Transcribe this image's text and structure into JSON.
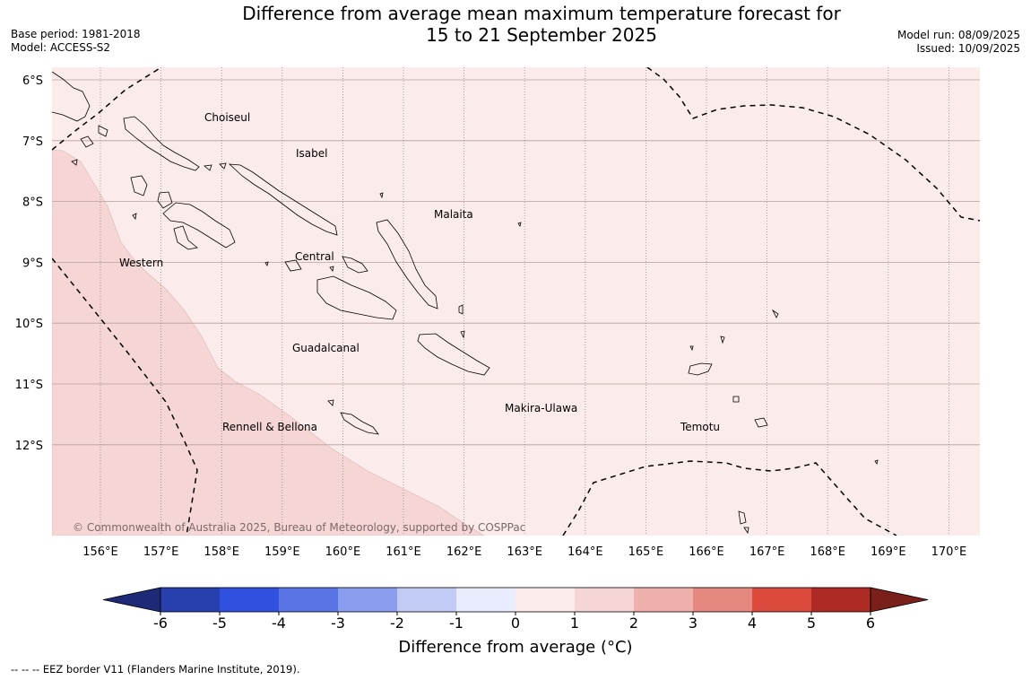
{
  "title": {
    "line1": "Difference from average mean maximum temperature forecast for",
    "line2": "15 to 21 September 2025"
  },
  "meta_left": {
    "base_period": "Base period: 1981-2018",
    "model": "Model: ACCESS-S2"
  },
  "meta_right": {
    "model_run": "Model run: 08/09/2025",
    "issued": "Issued: 10/09/2025"
  },
  "map": {
    "lat_labels": [
      "6°S",
      "7°S",
      "8°S",
      "9°S",
      "10°S",
      "11°S",
      "12°S"
    ],
    "lon_labels": [
      "156°E",
      "157°E",
      "158°E",
      "159°E",
      "160°E",
      "161°E",
      "162°E",
      "163°E",
      "164°E",
      "165°E",
      "166°E",
      "167°E",
      "168°E",
      "169°E",
      "170°E"
    ],
    "regions": [
      "Choiseul",
      "Isabel",
      "Malaita",
      "Western",
      "Central",
      "Guadalcanal",
      "Makira-Ulawa",
      "Rennell & Bellona",
      "Temotu"
    ],
    "anomaly_zones": [
      {
        "range": "1 to 2",
        "color": "#f6d6d4"
      },
      {
        "range": "0 to 1",
        "color": "#fbebea"
      }
    ],
    "copyright": "© Commonwealth of Australia 2025, Bureau of Meteorology, supported by COSPPac"
  },
  "colorbar": {
    "label": "Difference from average (°C)",
    "ticks": [
      "-6",
      "-5",
      "-4",
      "-3",
      "-2",
      "-1",
      "0",
      "1",
      "2",
      "3",
      "4",
      "5",
      "6"
    ],
    "under_color": "#1e2a78",
    "over_color": "#7a1f1a",
    "colors": [
      "#2840ae",
      "#3050e0",
      "#5a74e6",
      "#8a9ef0",
      "#c2cbf6",
      "#e8ecfd",
      "#fbebea",
      "#f6d6d4",
      "#eeb0ab",
      "#e58880",
      "#dc4a3e",
      "#ae2a24"
    ]
  },
  "footer": "--  --  -- EEZ border V11 (Flanders Marine Institute, 2019)."
}
